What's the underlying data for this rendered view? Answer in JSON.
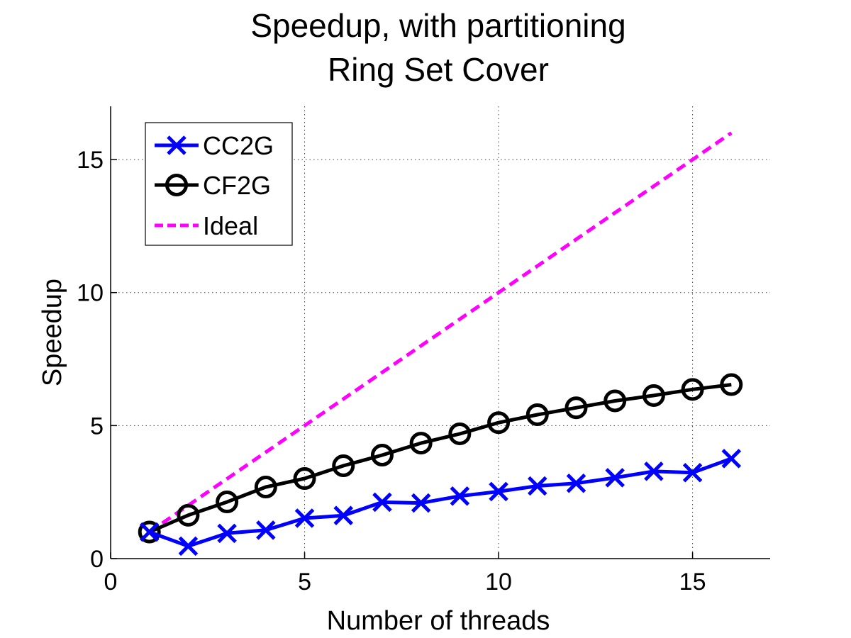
{
  "chart_data": {
    "type": "line",
    "title": [
      "Speedup, with partitioning",
      "Ring Set Cover"
    ],
    "xlabel": "Number of threads",
    "ylabel": "Speedup",
    "xlim": [
      0,
      17
    ],
    "ylim": [
      0,
      17
    ],
    "xticks": [
      0,
      5,
      10,
      15
    ],
    "yticks": [
      0,
      5,
      10,
      15
    ],
    "grid": true,
    "legend_position": "top-left",
    "x": [
      1,
      2,
      3,
      4,
      5,
      6,
      7,
      8,
      9,
      10,
      11,
      12,
      13,
      14,
      15,
      16
    ],
    "series": [
      {
        "name": "CC2G",
        "color": "#0000ff",
        "marker": "x",
        "linestyle": "solid",
        "values": [
          1.0,
          0.47,
          0.95,
          1.07,
          1.52,
          1.62,
          2.12,
          2.09,
          2.35,
          2.52,
          2.73,
          2.83,
          3.04,
          3.28,
          3.23,
          3.76
        ]
      },
      {
        "name": "CF2G",
        "color": "#000000",
        "marker": "o",
        "linestyle": "solid",
        "values": [
          1.0,
          1.63,
          2.13,
          2.69,
          3.01,
          3.49,
          3.89,
          4.34,
          4.69,
          5.11,
          5.41,
          5.67,
          5.93,
          6.13,
          6.36,
          6.54
        ]
      },
      {
        "name": "Ideal",
        "color": "#ff00ff",
        "marker": "none",
        "linestyle": "dashed",
        "values": [
          1,
          2,
          3,
          4,
          5,
          6,
          7,
          8,
          9,
          10,
          11,
          12,
          13,
          14,
          15,
          16
        ]
      }
    ]
  }
}
